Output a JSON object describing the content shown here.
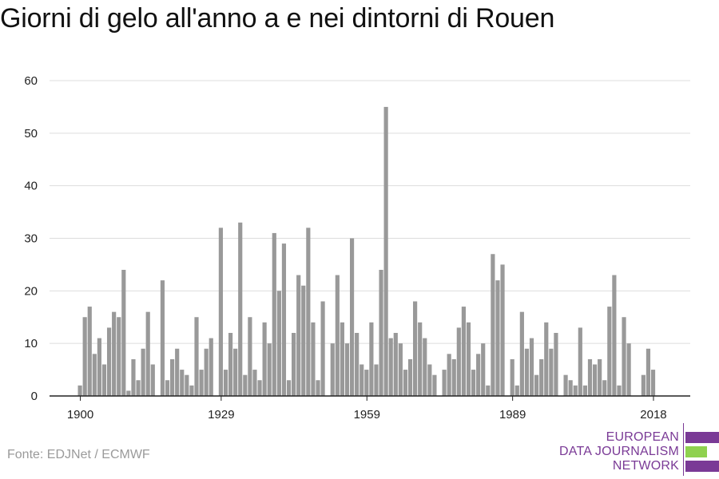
{
  "title": "Giorni di gelo all'anno a e nei dintorni di Rouen",
  "source": "Fonte: EDJNet / ECMWF",
  "logo": {
    "lines": [
      "EUROPEAN",
      "DATA JOURNALISM",
      "NETWORK"
    ],
    "colors": {
      "text": "#7a3a96",
      "bar_primary": "#7a3a96",
      "bar_accent": "#8fd14f"
    }
  },
  "chart_data": {
    "type": "bar",
    "title": "Giorni di gelo all'anno a e nei dintorni di Rouen",
    "xlabel": "",
    "ylabel": "",
    "x_start": 1900,
    "x_end": 2018,
    "x_ticks": [
      1900,
      1929,
      1959,
      1989,
      2018
    ],
    "y_ticks": [
      0,
      10,
      20,
      30,
      40,
      50,
      60
    ],
    "ylim": [
      0,
      60
    ],
    "grid": true,
    "bar_color": "#999999",
    "values": [
      2,
      15,
      17,
      8,
      11,
      6,
      13,
      16,
      15,
      24,
      1,
      7,
      3,
      9,
      16,
      6,
      0,
      22,
      3,
      7,
      9,
      5,
      4,
      2,
      15,
      5,
      9,
      11,
      0,
      32,
      5,
      12,
      9,
      33,
      4,
      15,
      5,
      3,
      14,
      10,
      31,
      20,
      29,
      3,
      12,
      23,
      21,
      32,
      14,
      3,
      18,
      0,
      10,
      23,
      14,
      10,
      30,
      12,
      6,
      5,
      14,
      6,
      24,
      55,
      11,
      12,
      10,
      5,
      7,
      18,
      14,
      11,
      6,
      4,
      0,
      5,
      8,
      7,
      13,
      17,
      14,
      5,
      8,
      10,
      2,
      27,
      22,
      25,
      0,
      7,
      2,
      16,
      9,
      11,
      4,
      7,
      14,
      9,
      12,
      0,
      4,
      3,
      2,
      13,
      2,
      7,
      6,
      7,
      3,
      17,
      23,
      2,
      15,
      10,
      0,
      0,
      4,
      9,
      5
    ]
  }
}
